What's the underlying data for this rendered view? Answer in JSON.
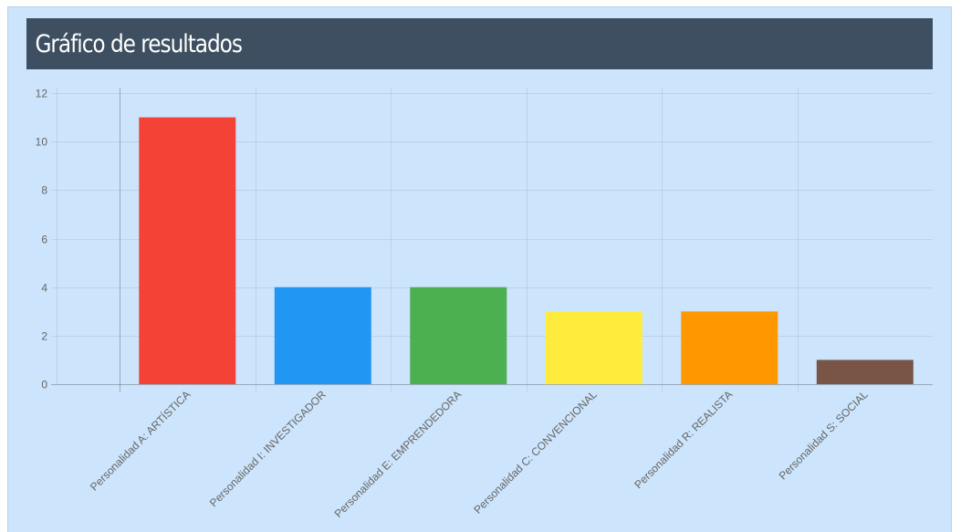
{
  "page": {
    "title": "Gráfico de resultados"
  },
  "chart_data": {
    "type": "bar",
    "title": "",
    "xlabel": "",
    "ylabel": "",
    "ylim": [
      0,
      12
    ],
    "yticks": [
      0,
      2,
      4,
      6,
      8,
      10,
      12
    ],
    "grid": true,
    "legend": "none",
    "categories": [
      "Personalidad A: ARTÍSTICA",
      "Personalidad I: INVESTIGADOR",
      "Personalidad E: EMPRENDEDORA",
      "Personalidad C: CONVENCIONAL",
      "Personalidad R: REALISTA",
      "Personalidad S: SOCIAL"
    ],
    "values": [
      11,
      4,
      4,
      3,
      3,
      1
    ],
    "colors": [
      "#f44336",
      "#2196f3",
      "#4caf50",
      "#ffeb3b",
      "#ff9800",
      "#795548"
    ]
  },
  "colors": {
    "panel_background": "#cce4fc",
    "header_background": "#3d4f60",
    "header_text": "#ffffff"
  }
}
